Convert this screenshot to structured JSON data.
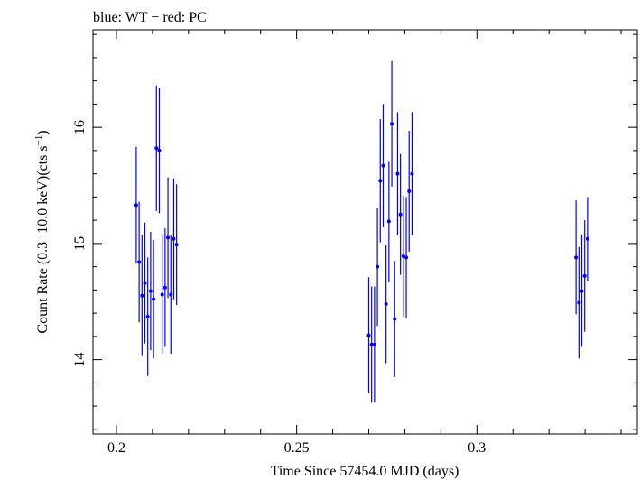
{
  "chart_data": {
    "type": "scatter",
    "title": "blue: WT − red: PC",
    "xlabel": "Time Since 57454.0 MJD (days)",
    "ylabel_main": "Count Rate (0.3−10.0 keV)(cts s",
    "ylabel_exp": "−1",
    "ylabel_close": ")",
    "xlim": [
      0.1935,
      0.3445
    ],
    "ylim": [
      13.36,
      16.84
    ],
    "xticks": [
      {
        "value": 0.2,
        "label": "0.2"
      },
      {
        "value": 0.25,
        "label": "0.25"
      },
      {
        "value": 0.3,
        "label": "0.3"
      }
    ],
    "yticks": [
      {
        "value": 14,
        "label": "14"
      },
      {
        "value": 15,
        "label": "15"
      },
      {
        "value": 16,
        "label": "16"
      }
    ],
    "grid": false,
    "series": [
      {
        "name": "WT",
        "color": "#0000ff",
        "points": [
          {
            "x": 0.2055,
            "y": 15.33,
            "err": 0.5
          },
          {
            "x": 0.2063,
            "y": 14.84,
            "err": 0.52
          },
          {
            "x": 0.2071,
            "y": 14.55,
            "err": 0.52
          },
          {
            "x": 0.2079,
            "y": 14.66,
            "err": 0.52
          },
          {
            "x": 0.2087,
            "y": 14.37,
            "err": 0.51
          },
          {
            "x": 0.2095,
            "y": 14.59,
            "err": 0.51
          },
          {
            "x": 0.2103,
            "y": 14.52,
            "err": 0.51
          },
          {
            "x": 0.2111,
            "y": 15.82,
            "err": 0.54
          },
          {
            "x": 0.2119,
            "y": 15.8,
            "err": 0.54
          },
          {
            "x": 0.2127,
            "y": 14.56,
            "err": 0.51
          },
          {
            "x": 0.2135,
            "y": 14.62,
            "err": 0.51
          },
          {
            "x": 0.2143,
            "y": 15.05,
            "err": 0.52
          },
          {
            "x": 0.2151,
            "y": 14.56,
            "err": 0.51
          },
          {
            "x": 0.2159,
            "y": 15.04,
            "err": 0.52
          },
          {
            "x": 0.2167,
            "y": 14.99,
            "err": 0.52
          },
          {
            "x": 0.27,
            "y": 14.21,
            "err": 0.5
          },
          {
            "x": 0.2708,
            "y": 14.13,
            "err": 0.5
          },
          {
            "x": 0.2716,
            "y": 14.13,
            "err": 0.5
          },
          {
            "x": 0.2724,
            "y": 14.8,
            "err": 0.51
          },
          {
            "x": 0.2732,
            "y": 15.54,
            "err": 0.53
          },
          {
            "x": 0.274,
            "y": 15.67,
            "err": 0.53
          },
          {
            "x": 0.2748,
            "y": 14.48,
            "err": 0.51
          },
          {
            "x": 0.2756,
            "y": 15.19,
            "err": 0.52
          },
          {
            "x": 0.2764,
            "y": 16.03,
            "err": 0.54
          },
          {
            "x": 0.2772,
            "y": 14.35,
            "err": 0.5
          },
          {
            "x": 0.278,
            "y": 15.6,
            "err": 0.53
          },
          {
            "x": 0.2788,
            "y": 15.25,
            "err": 0.52
          },
          {
            "x": 0.2796,
            "y": 14.89,
            "err": 0.52
          },
          {
            "x": 0.2804,
            "y": 14.88,
            "err": 0.52
          },
          {
            "x": 0.2812,
            "y": 15.45,
            "err": 0.52
          },
          {
            "x": 0.282,
            "y": 15.6,
            "err": 0.53
          },
          {
            "x": 0.3275,
            "y": 14.88,
            "err": 0.49
          },
          {
            "x": 0.3283,
            "y": 14.49,
            "err": 0.48
          },
          {
            "x": 0.3291,
            "y": 14.59,
            "err": 0.48
          },
          {
            "x": 0.3299,
            "y": 14.72,
            "err": 0.48
          },
          {
            "x": 0.3307,
            "y": 15.04,
            "err": 0.36
          }
        ]
      }
    ]
  }
}
